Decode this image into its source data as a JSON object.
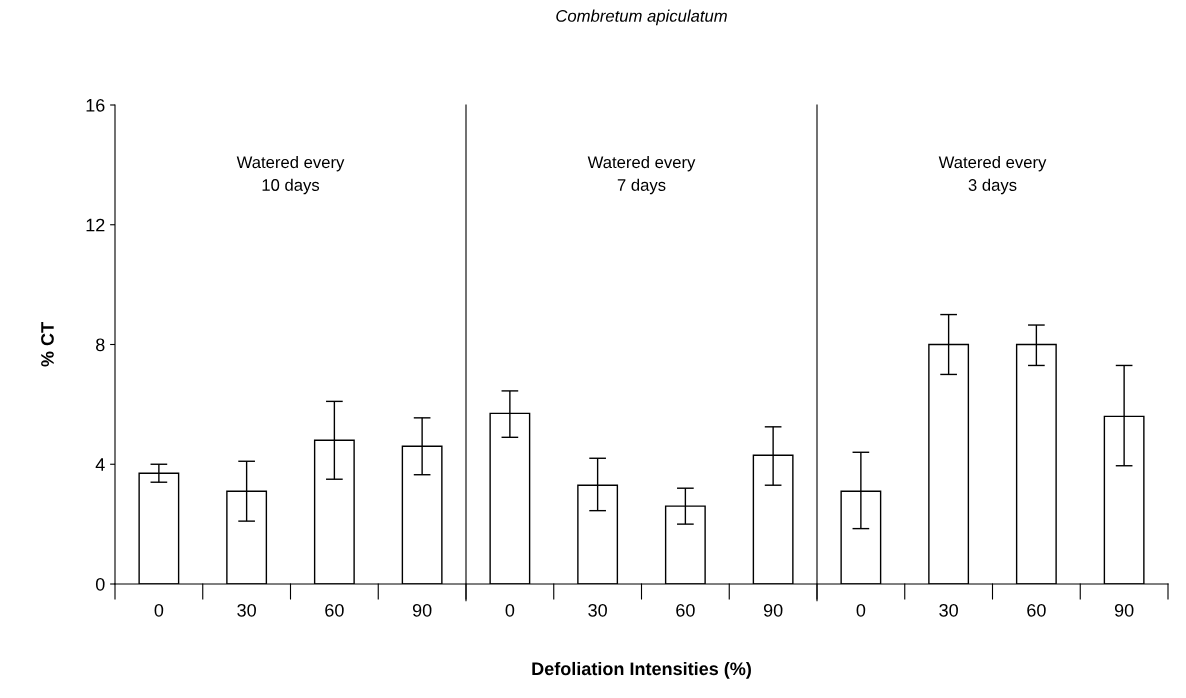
{
  "chart_data": {
    "type": "bar",
    "title": "Combretum apiculatum",
    "xlabel": "Defoliation Intensities (%)",
    "ylabel": "% CT",
    "categories": [
      "0",
      "30",
      "60",
      "90",
      "0",
      "30",
      "60",
      "90",
      "0",
      "30",
      "60",
      "90"
    ],
    "values": [
      3.7,
      3.1,
      4.8,
      4.6,
      5.7,
      3.3,
      2.6,
      4.3,
      3.1,
      8.0,
      8.0,
      5.6
    ],
    "errors": [
      [
        3.4,
        4.0
      ],
      [
        2.1,
        4.1
      ],
      [
        3.5,
        6.1
      ],
      [
        3.65,
        5.55
      ],
      [
        4.9,
        6.45
      ],
      [
        2.45,
        4.2
      ],
      [
        2.0,
        3.2
      ],
      [
        3.3,
        5.25
      ],
      [
        1.85,
        4.4
      ],
      [
        7.0,
        9.0
      ],
      [
        7.3,
        8.65
      ],
      [
        3.95,
        7.3
      ]
    ],
    "color": "#ffffff",
    "ylim": [
      0,
      16
    ],
    "yticks": [
      0,
      4,
      8,
      12,
      16
    ],
    "grid": false,
    "legend": false,
    "annotations": [
      "Watered every\n10 days",
      "Watered every\n7 days",
      "Watered every\n3 days"
    ]
  }
}
